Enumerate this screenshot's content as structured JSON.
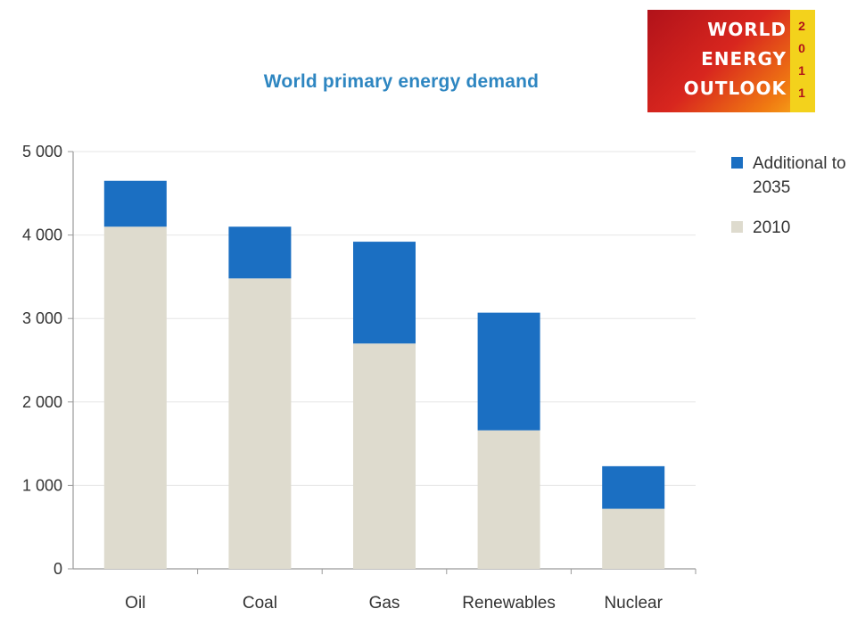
{
  "logo": {
    "lines": [
      "WORLD",
      "ENERGY",
      "OUTLOOK"
    ],
    "year_digits": [
      "2",
      "0",
      "1",
      "1"
    ]
  },
  "colors": {
    "series_2010": "#dedbce",
    "series_additional": "#1b6fc2",
    "title": "#2e86c1",
    "axis": "#9a9a9a",
    "grid": "#e6e6e6",
    "text": "#333333"
  },
  "chart_data": {
    "type": "bar",
    "stacked": true,
    "title": "World primary energy demand",
    "categories": [
      "Oil",
      "Coal",
      "Gas",
      "Renewables",
      "Nuclear"
    ],
    "series": [
      {
        "name": "2010",
        "values": [
          4100,
          3480,
          2700,
          1660,
          720
        ],
        "color": "#dedbce"
      },
      {
        "name": "Additional to 2035",
        "values": [
          550,
          620,
          1220,
          1410,
          510
        ],
        "color": "#1b6fc2"
      }
    ],
    "ylim": [
      0,
      5000
    ],
    "yticks": [
      0,
      1000,
      2000,
      3000,
      4000,
      5000
    ],
    "ytick_labels": [
      "0",
      "1 000",
      "2 000",
      "3 000",
      "4 000",
      "5 000"
    ],
    "grid": true,
    "legend_position": "right",
    "legend_order": [
      "Additional to 2035",
      "2010"
    ]
  }
}
